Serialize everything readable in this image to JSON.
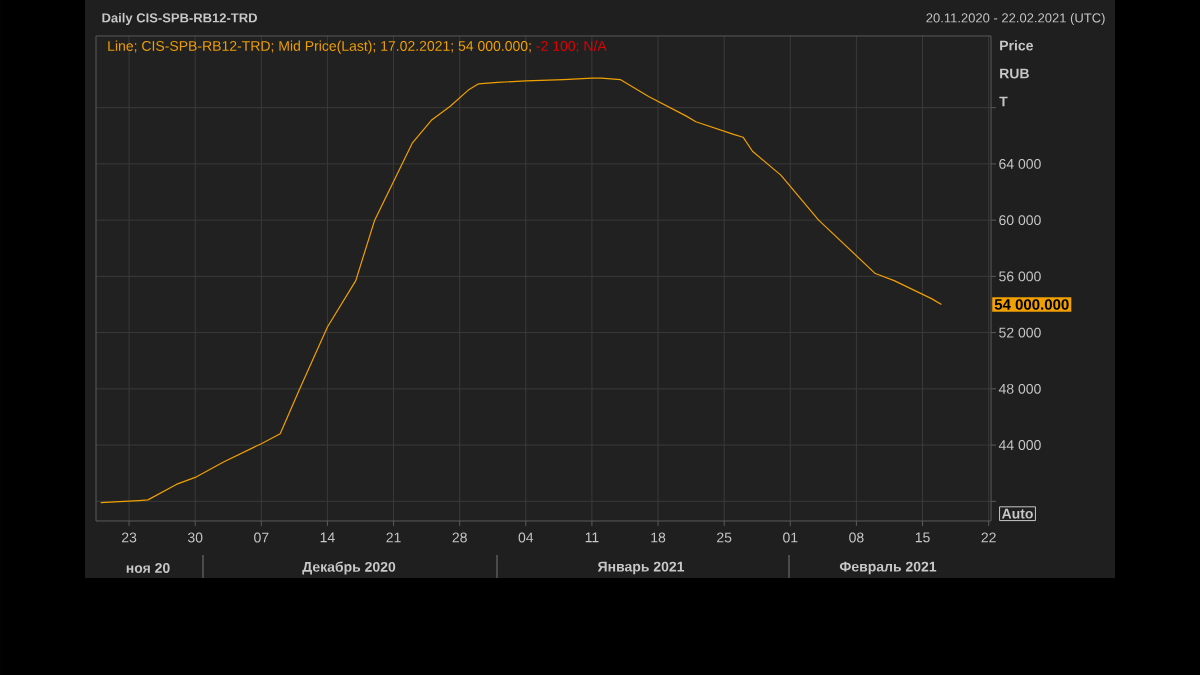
{
  "chart_data": {
    "type": "line",
    "title": "Daily CIS-SPB-RB12-TRD",
    "subtitle": "20.11.2020 - 22.02.2021 (UTC)",
    "ylabel": "Price RUB T",
    "x": [
      "2020-11-20",
      "2020-11-24",
      "2020-11-25",
      "2020-11-28",
      "2020-11-30",
      "2020-12-03",
      "2020-12-07",
      "2020-12-09",
      "2020-12-11",
      "2020-12-14",
      "2020-12-17",
      "2020-12-19",
      "2020-12-23",
      "2020-12-25",
      "2020-12-27",
      "2020-12-29",
      "2020-12-30",
      "2021-01-01",
      "2021-01-04",
      "2021-01-08",
      "2021-01-11",
      "2021-01-12",
      "2021-01-14",
      "2021-01-17",
      "2021-01-21",
      "2021-01-22",
      "2021-01-26",
      "2021-01-27",
      "2021-01-28",
      "2021-01-31",
      "2021-02-02",
      "2021-02-04",
      "2021-02-10",
      "2021-02-12",
      "2021-02-16",
      "2021-02-17"
    ],
    "series": [
      {
        "name": "Line; CIS-SPB-RB12-TRD; Mid Price(Last); 17.02.2021; 54 000.000;",
        "color": "#f0a000",
        "values": [
          39900,
          40050,
          40100,
          41200,
          41700,
          42800,
          44100,
          44800,
          47900,
          52400,
          55700,
          60000,
          65500,
          67100,
          68100,
          69300,
          69700,
          69800,
          69900,
          70000,
          70100,
          70100,
          70000,
          68800,
          67400,
          67000,
          66100,
          65900,
          64900,
          63200,
          61600,
          60000,
          56200,
          55700,
          54400,
          54000
        ]
      }
    ],
    "xlim": [
      "2020-11-19T12:00",
      "2021-02-22T06:00"
    ],
    "xticks": [
      {
        "value": "2020-11-23",
        "label": "23"
      },
      {
        "value": "2020-11-30",
        "label": "30"
      },
      {
        "value": "2020-12-07",
        "label": "07"
      },
      {
        "value": "2020-12-14",
        "label": "14"
      },
      {
        "value": "2020-12-21",
        "label": "21"
      },
      {
        "value": "2020-12-28",
        "label": "28"
      },
      {
        "value": "2021-01-04",
        "label": "04"
      },
      {
        "value": "2021-01-11",
        "label": "11"
      },
      {
        "value": "2021-01-18",
        "label": "18"
      },
      {
        "value": "2021-01-25",
        "label": "25"
      },
      {
        "value": "2021-02-01",
        "label": "01"
      },
      {
        "value": "2021-02-08",
        "label": "08"
      },
      {
        "value": "2021-02-15",
        "label": "15"
      },
      {
        "value": "2021-02-22",
        "label": "22"
      }
    ],
    "ylim": [
      38600,
      73100
    ],
    "yticks": [
      {
        "value": 40000,
        "label": null
      },
      {
        "value": 44000,
        "label": "44 000"
      },
      {
        "value": 48000,
        "label": "48 000"
      },
      {
        "value": 52000,
        "label": "52 000"
      },
      {
        "value": 56000,
        "label": "56 000"
      },
      {
        "value": 60000,
        "label": "60 000"
      },
      {
        "value": 64000,
        "label": "64 000"
      },
      {
        "value": 68000,
        "label": null
      }
    ],
    "grid": true,
    "legend": "top left",
    "annotations": [
      "-2 100; N/A",
      "54 000.000",
      "Auto",
      "ноя 20",
      "Декабрь 2020",
      "Январь 2021",
      "Февраль 2021"
    ]
  }
}
